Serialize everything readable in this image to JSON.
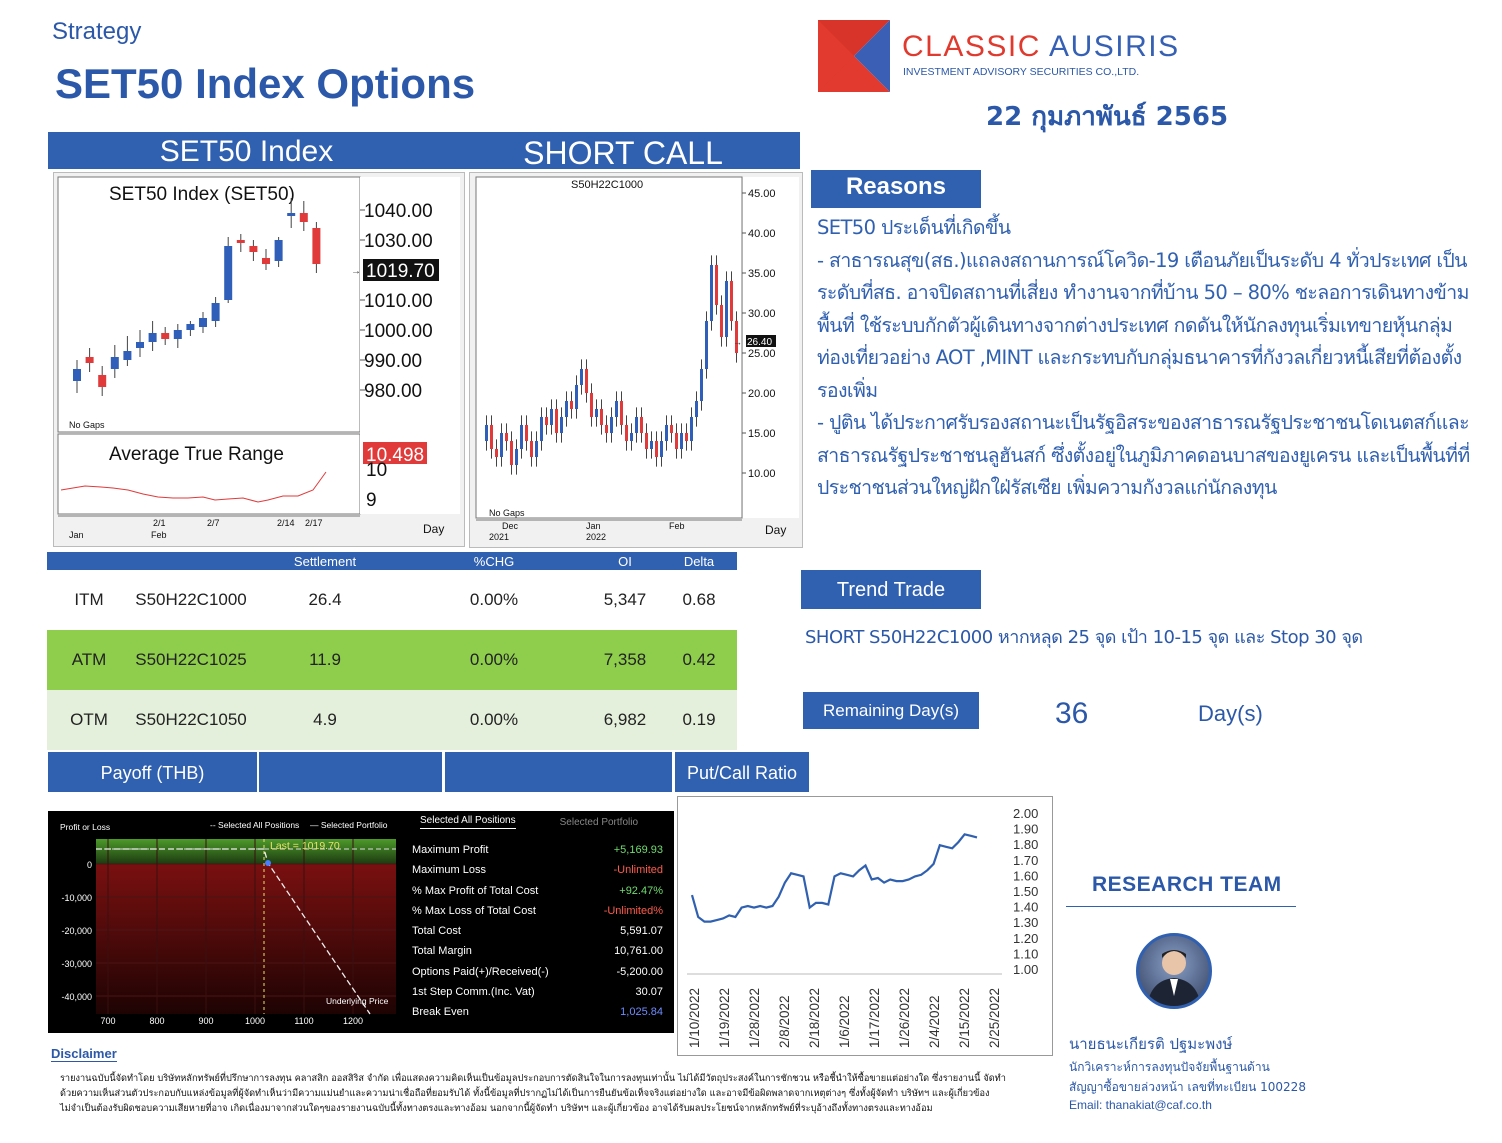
{
  "header": {
    "kicker": "Strategy",
    "title": "SET50 Index Options",
    "date": "22 กุมภาพันธ์ 2565",
    "brand_name": "CLASSIC AUSIRIS",
    "brand_sub": "INVESTMENT ADVISORY SECURITIES CO.,LTD."
  },
  "sections": {
    "set50": "SET50 Index",
    "strategy": "SHORT CALL",
    "reasons": "Reasons",
    "trend_trade": "Trend Trade",
    "remaining": "Remaining Day(s)",
    "payoff": "Payoff (THB)",
    "put_call": "Put/Call Ratio",
    "research_team": "RESEARCH TEAM",
    "disclaimer": "Disclaimer"
  },
  "colors": {
    "accent": "#3060b0",
    "up": "#2f5fb8",
    "down": "#e03a3a",
    "atm_row": "#8fce4c",
    "otm_row": "#e4f0dc"
  },
  "set50_chart": {
    "title": "SET50 Index (SET50)",
    "y_ticks": [
      "1040.00",
      "1030.00",
      "1019.70",
      "1010.00",
      "1000.00",
      "990.00",
      "980.00"
    ],
    "last": "1019.70",
    "gaps_note": "No Gaps",
    "atr_title": "Average True Range",
    "atr_value": "10.498",
    "atr_ticks": [
      "10",
      "9"
    ],
    "x_labels": [
      "Jan",
      "2/1",
      "Feb",
      "2/7",
      "2/14",
      "2/17"
    ],
    "period": "Day"
  },
  "option_chart": {
    "title": "S50H22C1000",
    "y_ticks": [
      "45.00",
      "40.00",
      "35.00",
      "30.00",
      "26.40",
      "25.00",
      "20.00",
      "15.00",
      "10.00"
    ],
    "last": "26.40",
    "gaps_note": "No Gaps",
    "x_labels": [
      "Dec",
      "2021",
      "Jan",
      "2022",
      "Feb"
    ],
    "period": "Day"
  },
  "options_table": {
    "headers": [
      "",
      "",
      "Settlement",
      "%CHG",
      "OI",
      "Delta"
    ],
    "rows": [
      {
        "type": "ITM",
        "series": "S50H22C1000",
        "settlement": "26.4",
        "chg": "0.00%",
        "oi": "5,347",
        "delta": "0.68"
      },
      {
        "type": "ATM",
        "series": "S50H22C1025",
        "settlement": "11.9",
        "chg": "0.00%",
        "oi": "7,358",
        "delta": "0.42"
      },
      {
        "type": "OTM",
        "series": "S50H22C1050",
        "settlement": "4.9",
        "chg": "0.00%",
        "oi": "6,982",
        "delta": "0.19"
      }
    ]
  },
  "reasons_text": [
    "SET50 ประเด็นที่เกิดขึ้น",
    "- สาธารณสุข(สธ.)แถลงสถานการณ์โควิด-19 เตือนภัยเป็นระดับ 4 ทั่วประเทศ เป็น",
    "ระดับที่สธ. อาจปิดสถานที่เสี่ยง ทำงานจากที่บ้าน 50 – 80% ชะลอการเดินทางข้าม",
    "พื้นที่ ใช้ระบบกักตัวผู้เดินทางจากต่างประเทศ กดดันให้นักลงทุนเริ่มเทขายหุ้นกลุ่ม",
    "ท่องเที่ยวอย่าง AOT ,MINT และกระทบกับกลุ่มธนาคารที่กังวลเกี่ยวหนี้เสียที่ต้องตั้ง",
    "รองเพิ่ม",
    "- ปูติน ได้ประกาศรับรองสถานะเป็นรัฐอิสระของสาธารณรัฐประชาชนโดเนตสก์และ",
    "สาธารณรัฐประชาชนลูฮันสก์ ซึ่งตั้งอยู่ในภูมิภาคดอนบาสของยูเครน และเป็นพื้นที่ที่",
    "ประชาชนส่วนใหญ่ฝักใฝ่รัสเซีย เพิ่มความกังวลแก่นักลงทุน"
  ],
  "trend_trade_text": "SHORT S50H22C1000 หากหลุด 25 จุด เป้า 10-15 จุด และ Stop 30 จุด",
  "remaining": {
    "value": "36",
    "unit": "Day(s)"
  },
  "payoff": {
    "ylabel": "Profit or Loss",
    "legend_all": "-- Selected All Positions",
    "legend_portfolio": "— Selected Portfolio",
    "last_label": "Last = 1019.70",
    "xlabel": "Underlying Price",
    "y_ticks": [
      "0",
      "-10,000",
      "-20,000",
      "-30,000",
      "-40,000"
    ],
    "x_ticks": [
      "700",
      "800",
      "900",
      "1000",
      "1100",
      "1200"
    ],
    "tab_all": "Selected All Positions",
    "tab_portfolio": "Selected Portfolio",
    "stats": [
      {
        "label": "Maximum Profit",
        "value": "+5,169.93",
        "color": "#6fdc6f"
      },
      {
        "label": "Maximum Loss",
        "value": "-Unlimited",
        "color": "#ff5a4a"
      },
      {
        "label": "% Max Profit of Total Cost",
        "value": "+92.47%",
        "color": "#6fdc6f"
      },
      {
        "label": "% Max Loss of Total Cost",
        "value": "-Unlimited%",
        "color": "#ff5a4a"
      },
      {
        "label": "Total Cost",
        "value": "5,591.07",
        "color": "#ffffff"
      },
      {
        "label": "Total Margin",
        "value": "10,761.00",
        "color": "#ffffff"
      },
      {
        "label": "Options Paid(+)/Received(-)",
        "value": "-5,200.00",
        "color": "#ffffff"
      },
      {
        "label": "1st Step Comm.(Inc. Vat)",
        "value": "30.07",
        "color": "#ffffff"
      },
      {
        "label": "Break Even",
        "value": "1,025.84",
        "color": "#6f8cff"
      }
    ]
  },
  "put_call_chart": {
    "y_ticks": [
      "2.00",
      "1.90",
      "1.80",
      "1.70",
      "1.60",
      "1.50",
      "1.40",
      "1.30",
      "1.20",
      "1.10",
      "1.00"
    ],
    "x_labels": [
      "1/10/2022",
      "1/19/2022",
      "1/28/2022",
      "2/8/2022",
      "2/18/2022",
      "1/6/2022",
      "1/17/2022",
      "1/26/2022",
      "2/4/2022",
      "2/15/2022",
      "2/25/2022"
    ]
  },
  "analyst": {
    "name": "นายธนะเกียรติ ปฐมะพงษ์",
    "role": "นักวิเคราะห์การลงทุนปัจจัยพื้นฐานด้าน",
    "license": "สัญญาซื้อขายล่วงหน้า เลขที่ทะเบียน 100228",
    "email": "Email: thanakiat@caf.co.th"
  },
  "disclaimer_text": [
    "รายงานฉบับนี้จัดทำโดย บริษัทหลักทรัพย์ที่ปรึกษาการลงทุน คลาสสิก ออสสิริส จำกัด เพื่อแสดงความคิดเห็นเป็นข้อมูลประกอบการตัดสินใจในการลงทุนเท่านั้น ไม่ได้มีวัตถุประสงค์ในการชักชวน หรือชี้นำให้ซื้อขายแต่อย่างใด ซึ่งรายงานนี้ จัดทำ",
    "ด้วยความเห็นส่วนตัวประกอบกับแหล่งข้อมูลที่ผู้จัดทำเห็นว่ามีความแม่นยำและความน่าเชื่อถือที่ยอมรับได้ ทั้งนี้ข้อมูลที่ปรากฏไม่ได้เป็นการยืนยันข้อเท็จจริงแต่อย่างใด และอาจมีข้อผิดพลาดจากเหตุต่างๆ ซึ่งทั้งผู้จัดทำ บริษัทฯ และผู้เกี่ยวข้อง",
    "ไม่จำเป็นต้องรับผิดชอบความเสียหายที่อาจ เกิดเนื่องมาจากส่วนใดๆของรายงานฉบับนี้ทั้งทางตรงและทางอ้อม นอกจากนี้ผู้จัดทำ บริษัทฯ และผู้เกี่ยวข้อง อาจได้รับผลประโยชน์จากหลักทรัพย์ที่ระบุอ้างถึงทั้งทางตรงและทางอ้อม"
  ]
}
